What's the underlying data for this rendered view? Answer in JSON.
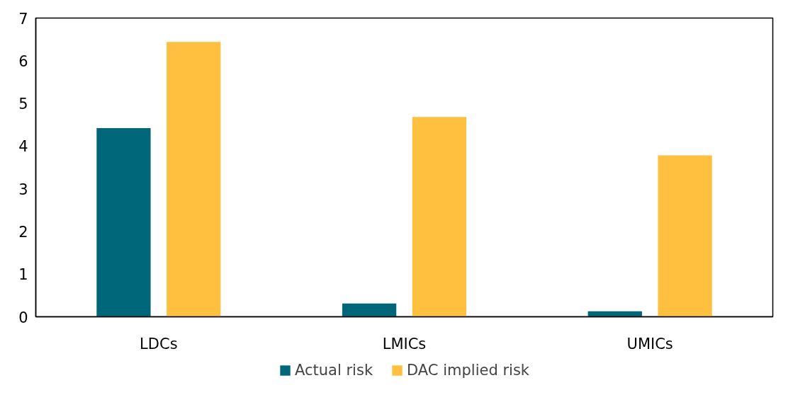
{
  "chart_data": {
    "type": "bar",
    "categories": [
      "LDCs",
      "LMICs",
      "UMICs"
    ],
    "series": [
      {
        "name": "Actual risk",
        "color": "#00677a",
        "values": [
          4.42,
          0.31,
          0.13
        ]
      },
      {
        "name": "DAC implied risk",
        "color": "#ffbf3f",
        "values": [
          6.44,
          4.68,
          3.78
        ]
      }
    ],
    "ylim": [
      0,
      7
    ],
    "yticks": [
      0,
      1,
      2,
      3,
      4,
      5,
      6,
      7
    ],
    "grid": false,
    "legend": "bottom"
  }
}
